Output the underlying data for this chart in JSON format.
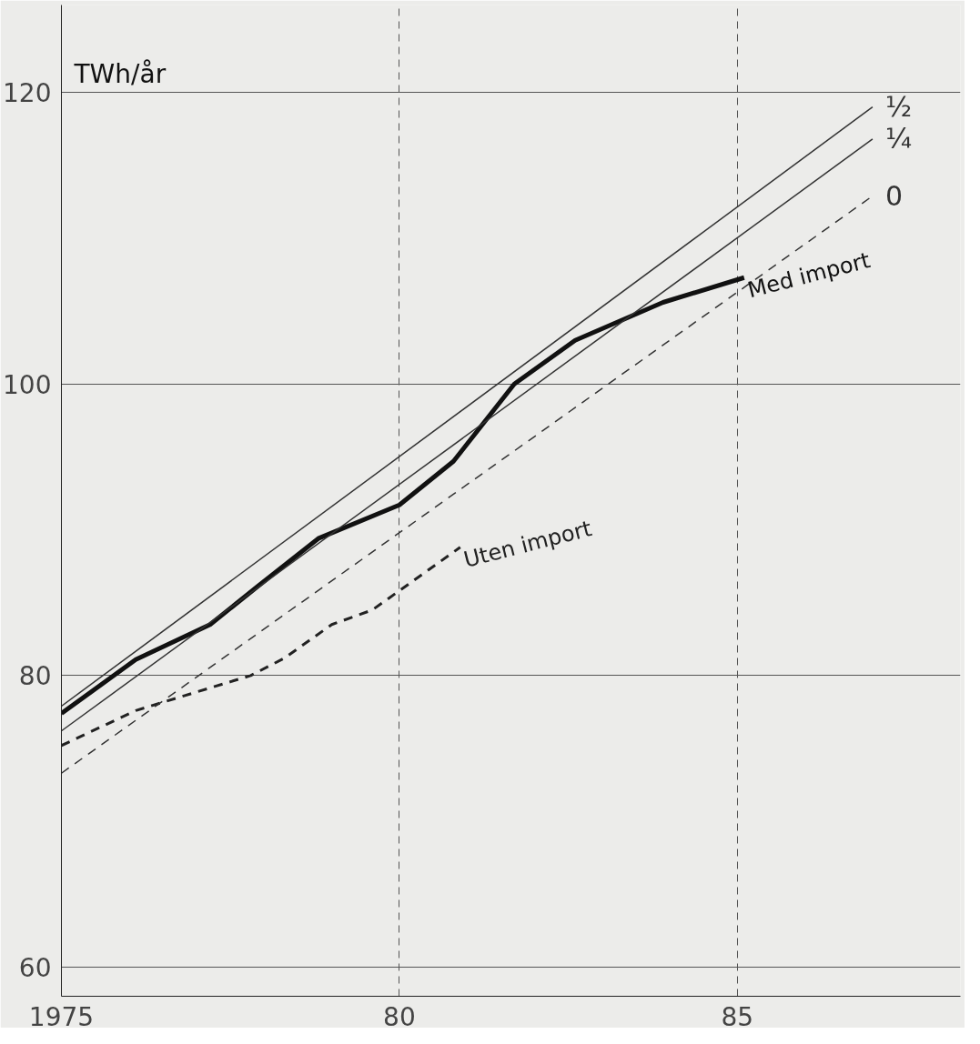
{
  "chart_data": {
    "type": "line",
    "ylabel": "TWh/år",
    "xlim": [
      1975,
      1988.3
    ],
    "ylim": [
      58,
      126
    ],
    "xticks": [
      {
        "value": 1975,
        "label": "1975"
      },
      {
        "value": 1980,
        "label": "80"
      },
      {
        "value": 1985,
        "label": "85"
      }
    ],
    "yticks": [
      60,
      80,
      100,
      120
    ],
    "grid": true,
    "marker": "none",
    "series": [
      {
        "name": "Med import",
        "color": "#111111",
        "line_style": "solid",
        "x": [
          1975,
          1976.1,
          1977.2,
          1977.9,
          1978.8,
          1980,
          1980.8,
          1981.7,
          1982.6,
          1983.9,
          1985.1
        ],
        "values": [
          77.4,
          81.1,
          83.5,
          86.1,
          89.4,
          91.7,
          94.7,
          100,
          103,
          105.6,
          107.3
        ]
      },
      {
        "name": "Uten import",
        "color": "#222222",
        "line_style": "dashed",
        "x": [
          1975,
          1976.1,
          1977.8,
          1978.3,
          1979,
          1979.6,
          1980.9
        ],
        "values": [
          75.2,
          77.6,
          80,
          81.2,
          83.5,
          84.5,
          88.8
        ]
      },
      {
        "name": "½",
        "color": "#333333",
        "line_style": "solid",
        "x": [
          1975,
          1987
        ],
        "values": [
          77.9,
          119
        ]
      },
      {
        "name": "¼",
        "color": "#333333",
        "line_style": "solid",
        "x": [
          1975,
          1987
        ],
        "values": [
          76.2,
          116.8
        ]
      },
      {
        "name": "0",
        "color": "#333333",
        "line_style": "dashed",
        "x": [
          1975,
          1987
        ],
        "values": [
          73.3,
          112.9
        ]
      }
    ]
  }
}
